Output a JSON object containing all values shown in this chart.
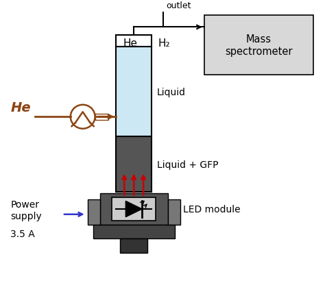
{
  "bg_color": "#ffffff",
  "liquid_color": "#cce8f4",
  "gfp_color": "#555555",
  "mass_spec_text": "Mass\nspectrometer",
  "outlet_label": "outlet",
  "he_label_top": "He",
  "h2_label_top": "H₂",
  "he_label_left": "He",
  "liquid_label": "Liquid",
  "gfp_label": "Liquid + GFP",
  "led_label": "LED module",
  "power_label": "Power\nsupply",
  "current_label": "3.5 A",
  "arrow_color": "#cc0000",
  "he_color": "#8B4513",
  "power_arrow_color": "#3333cc",
  "ms_box_color": "#d8d8d8",
  "led_dark": "#555555",
  "led_medium": "#777777",
  "led_light": "#cccccc",
  "led_base_color": "#444444"
}
